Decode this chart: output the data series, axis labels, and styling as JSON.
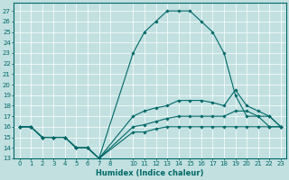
{
  "xlabel": "Humidex (Indice chaleur)",
  "bg_color": "#c2e0e0",
  "grid_color": "#ffffff",
  "line_color": "#006868",
  "xlim": [
    -0.5,
    23.5
  ],
  "ylim": [
    13,
    27.8
  ],
  "xticks": [
    0,
    1,
    2,
    3,
    4,
    5,
    6,
    7,
    8,
    10,
    11,
    12,
    13,
    14,
    15,
    16,
    17,
    18,
    19,
    20,
    21,
    22,
    23
  ],
  "yticks": [
    13,
    14,
    15,
    16,
    17,
    18,
    19,
    20,
    21,
    22,
    23,
    24,
    25,
    26,
    27
  ],
  "lines": [
    {
      "x": [
        0,
        1,
        2,
        3,
        4,
        5,
        6,
        7,
        10,
        11,
        12,
        13,
        14,
        15,
        16,
        17,
        18,
        19,
        20,
        21,
        22,
        23
      ],
      "y": [
        16,
        16,
        15,
        15,
        15,
        14,
        14,
        13,
        23,
        25,
        26,
        27,
        27,
        27,
        26,
        25,
        23,
        19,
        17,
        17,
        16,
        16
      ]
    },
    {
      "x": [
        0,
        1,
        2,
        3,
        4,
        5,
        6,
        7,
        10,
        11,
        12,
        13,
        14,
        15,
        16,
        17,
        18,
        19,
        20,
        21,
        22,
        23
      ],
      "y": [
        16,
        16,
        15,
        15,
        15,
        14,
        14,
        13,
        17,
        17.5,
        17.8,
        18,
        18.5,
        18.5,
        18.5,
        18.3,
        18,
        19.5,
        18,
        17.5,
        17,
        16
      ]
    },
    {
      "x": [
        0,
        1,
        2,
        3,
        4,
        5,
        6,
        7,
        10,
        11,
        12,
        13,
        14,
        15,
        16,
        17,
        18,
        19,
        20,
        21,
        22,
        23
      ],
      "y": [
        16,
        16,
        15,
        15,
        15,
        14,
        14,
        13,
        16,
        16.2,
        16.5,
        16.8,
        17,
        17,
        17,
        17,
        17,
        17.5,
        17.5,
        17,
        17,
        16
      ]
    },
    {
      "x": [
        0,
        1,
        2,
        3,
        4,
        5,
        6,
        7,
        10,
        11,
        12,
        13,
        14,
        15,
        16,
        17,
        18,
        19,
        20,
        21,
        22,
        23
      ],
      "y": [
        16,
        16,
        15,
        15,
        15,
        14,
        14,
        13,
        15.5,
        15.5,
        15.8,
        16,
        16,
        16,
        16,
        16,
        16,
        16,
        16,
        16,
        16,
        16
      ]
    }
  ]
}
